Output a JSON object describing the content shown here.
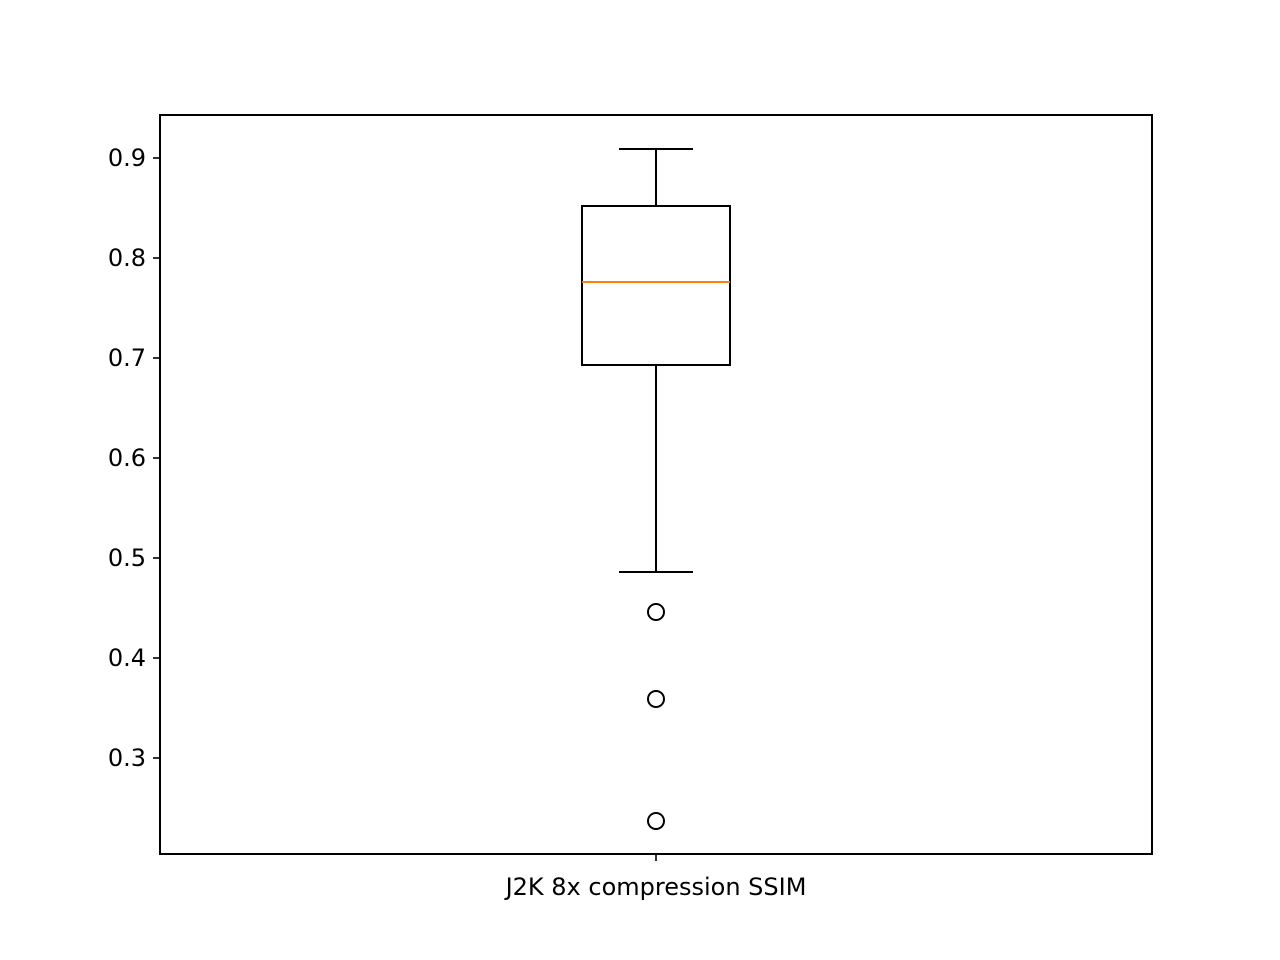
{
  "chart_data": {
    "type": "box",
    "categories": [
      "J2K 8x compression SSIM"
    ],
    "series": [
      {
        "whisker_low": 0.486,
        "q1": 0.693,
        "median": 0.776,
        "q3": 0.852,
        "whisker_high": 0.909,
        "outliers": [
          0.446,
          0.359,
          0.237
        ]
      }
    ],
    "ylim": [
      0.204,
      0.943
    ],
    "yticks": [
      0.3,
      0.4,
      0.5,
      0.6,
      0.7,
      0.8,
      0.9
    ],
    "ytick_labels": [
      "0.3",
      "0.4",
      "0.5",
      "0.6",
      "0.7",
      "0.8",
      "0.9"
    ],
    "grid": false,
    "colors": {
      "box": "#000000",
      "median": "#ff7f0e",
      "outlier_edge": "#000000"
    }
  }
}
